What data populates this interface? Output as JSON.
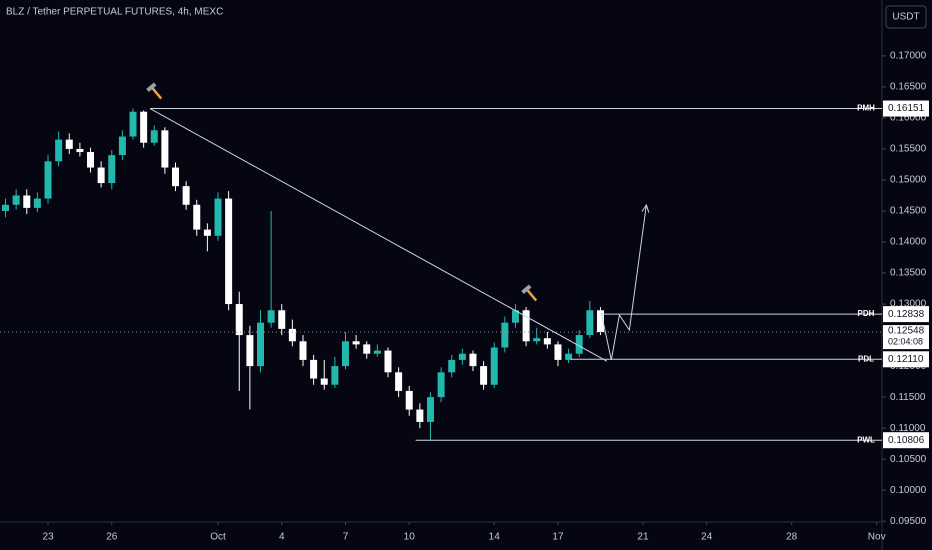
{
  "chart_data": {
    "type": "candlestick",
    "title": "BLZ / Tether PERPETUAL FUTURES, 4h, MEXC",
    "currency": "USDT",
    "x": [
      1.0,
      1.5,
      2.0,
      2.5,
      3.0,
      3.5,
      4.0,
      4.5,
      5.0,
      5.5,
      6.0,
      6.5,
      7.0,
      7.5,
      8.0,
      8.5,
      9.0,
      9.5,
      10.0,
      10.5,
      11.0,
      11.5,
      12.0,
      12.5,
      13.0,
      13.5,
      14.0,
      14.5,
      15.0,
      15.5,
      16.0,
      16.5,
      17.0,
      17.5,
      18.0,
      18.5,
      19.0,
      19.5,
      20.0,
      20.5,
      21.0,
      21.5,
      22.0,
      22.5,
      23.0,
      23.5,
      24.0,
      24.5,
      25.0,
      25.5,
      26.0,
      26.5,
      27.0,
      27.5,
      28.0,
      28.5,
      29.0
    ],
    "open": [
      0.145,
      0.146,
      0.1475,
      0.1455,
      0.147,
      0.153,
      0.1565,
      0.155,
      0.1545,
      0.152,
      0.1495,
      0.154,
      0.157,
      0.161,
      0.156,
      0.158,
      0.152,
      0.149,
      0.146,
      0.142,
      0.141,
      0.147,
      0.13,
      0.125,
      0.12,
      0.127,
      0.129,
      0.126,
      0.124,
      0.121,
      0.118,
      0.117,
      0.12,
      0.124,
      0.1235,
      0.122,
      0.1225,
      0.119,
      0.116,
      0.113,
      0.111,
      0.115,
      0.119,
      0.121,
      0.122,
      0.12,
      0.117,
      0.123,
      0.127,
      0.129,
      0.124,
      0.1245,
      0.1235,
      0.121,
      0.122,
      0.125,
      0.129
    ],
    "high": [
      0.147,
      0.1485,
      0.1485,
      0.148,
      0.154,
      0.1578,
      0.1575,
      0.156,
      0.1552,
      0.153,
      0.1548,
      0.158,
      0.16151,
      0.1612,
      0.1588,
      0.1585,
      0.1528,
      0.1498,
      0.1468,
      0.143,
      0.148,
      0.1482,
      0.132,
      0.1265,
      0.129,
      0.145,
      0.13,
      0.1275,
      0.125,
      0.1218,
      0.121,
      0.1215,
      0.1255,
      0.125,
      0.124,
      0.1235,
      0.123,
      0.1198,
      0.1168,
      0.114,
      0.1158,
      0.1198,
      0.1218,
      0.1228,
      0.1225,
      0.1208,
      0.1238,
      0.128,
      0.13,
      0.1295,
      0.1262,
      0.1255,
      0.124,
      0.1228,
      0.1258,
      0.1305,
      0.1295
    ],
    "low": [
      0.144,
      0.1452,
      0.1445,
      0.1448,
      0.1462,
      0.1522,
      0.1542,
      0.1538,
      0.1512,
      0.1488,
      0.1485,
      0.1532,
      0.1565,
      0.1552,
      0.1555,
      0.151,
      0.1482,
      0.1452,
      0.141,
      0.1385,
      0.1402,
      0.129,
      0.116,
      0.113,
      0.119,
      0.1262,
      0.125,
      0.1232,
      0.12,
      0.117,
      0.1162,
      0.1165,
      0.1195,
      0.1228,
      0.1212,
      0.1215,
      0.1182,
      0.115,
      0.112,
      0.11,
      0.10806,
      0.1142,
      0.1182,
      0.1202,
      0.1192,
      0.1162,
      0.1165,
      0.1222,
      0.1262,
      0.1232,
      0.1235,
      0.1228,
      0.12,
      0.1205,
      0.1215,
      0.1245,
      0.125
    ],
    "close": [
      0.146,
      0.1475,
      0.1455,
      0.147,
      0.153,
      0.1565,
      0.155,
      0.1545,
      0.152,
      0.1495,
      0.154,
      0.157,
      0.161,
      0.156,
      0.158,
      0.152,
      0.149,
      0.146,
      0.142,
      0.141,
      0.147,
      0.13,
      0.125,
      0.12,
      0.127,
      0.129,
      0.126,
      0.124,
      0.121,
      0.118,
      0.117,
      0.12,
      0.124,
      0.1235,
      0.122,
      0.1225,
      0.119,
      0.116,
      0.113,
      0.111,
      0.115,
      0.119,
      0.121,
      0.122,
      0.12,
      0.117,
      0.123,
      0.127,
      0.129,
      0.124,
      0.1245,
      0.1235,
      0.121,
      0.122,
      0.125,
      0.129,
      0.12548
    ],
    "up_color": "#22b8ad",
    "down_color": "#ffffff",
    "last_price": 0.12548,
    "countdown": "02:04:08",
    "levels": [
      {
        "name": "PMH",
        "value": 0.16151,
        "start": 7.8
      },
      {
        "name": "PDH",
        "value": 0.12838,
        "start": 29.0
      },
      {
        "name": "PDL",
        "value": 0.1211,
        "value_label": "0.12110",
        "start": 27.6
      },
      {
        "name": "PWL",
        "value": 0.10806,
        "start": 20.3
      }
    ],
    "trendline": {
      "x": [
        7.8,
        29.3
      ],
      "y": [
        0.1615,
        0.1208
      ]
    },
    "projection": {
      "x": [
        29.04,
        29.51,
        29.89,
        30.36,
        31.16
      ],
      "y": [
        0.12855,
        0.121,
        0.12823,
        0.12581,
        0.14597
      ]
    },
    "xlim": [
      0.74,
      42.25
    ],
    "xticks": [
      {
        "value": 3,
        "label": "23"
      },
      {
        "value": 6,
        "label": "26"
      },
      {
        "value": 11,
        "label": "Oct"
      },
      {
        "value": 14,
        "label": "4"
      },
      {
        "value": 17,
        "label": "7"
      },
      {
        "value": 20,
        "label": "10"
      },
      {
        "value": 24,
        "label": "14"
      },
      {
        "value": 27,
        "label": "17"
      },
      {
        "value": 31,
        "label": "21"
      },
      {
        "value": 34,
        "label": "24"
      },
      {
        "value": 38,
        "label": "28"
      },
      {
        "value": 42,
        "label": "Nov"
      }
    ],
    "ylim": [
      0.0952,
      0.179
    ],
    "yticks": [
      {
        "value": 0.095,
        "label": "0.09500"
      },
      {
        "value": 0.1,
        "label": "0.10000"
      },
      {
        "value": 0.105,
        "label": "0.10500"
      },
      {
        "value": 0.11,
        "label": "0.11000"
      },
      {
        "value": 0.115,
        "label": "0.11500"
      },
      {
        "value": 0.12,
        "label": "0.12000"
      },
      {
        "value": 0.125,
        "label": "0.12500"
      },
      {
        "value": 0.13,
        "label": "0.13000"
      },
      {
        "value": 0.135,
        "label": "0.13500"
      },
      {
        "value": 0.14,
        "label": "0.14000"
      },
      {
        "value": 0.145,
        "label": "0.14500"
      },
      {
        "value": 0.15,
        "label": "0.15000"
      },
      {
        "value": 0.155,
        "label": "0.15500"
      },
      {
        "value": 0.16,
        "label": "0.16000"
      },
      {
        "value": 0.165,
        "label": "0.16500"
      },
      {
        "value": 0.17,
        "label": "0.17000"
      }
    ]
  }
}
